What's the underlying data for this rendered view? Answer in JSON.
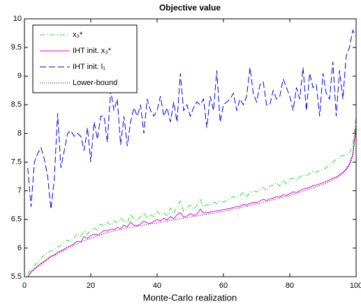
{
  "chart_data": {
    "type": "line",
    "title": "Objective value",
    "xlabel": "Monte-Carlo realization",
    "xlim": [
      0,
      100
    ],
    "xticks": [
      0,
      20,
      40,
      60,
      80,
      100
    ],
    "ylim": [
      5.5,
      10
    ],
    "yticks": [
      5.5,
      6,
      6.5,
      7,
      7.5,
      8,
      8.5,
      9,
      9.5,
      10
    ],
    "legend": "northwest",
    "x": [
      1,
      2,
      3,
      4,
      5,
      6,
      7,
      8,
      9,
      10,
      11,
      12,
      13,
      14,
      15,
      16,
      17,
      18,
      19,
      20,
      21,
      22,
      23,
      24,
      25,
      26,
      27,
      28,
      29,
      30,
      31,
      32,
      33,
      34,
      35,
      36,
      37,
      38,
      39,
      40,
      41,
      42,
      43,
      44,
      45,
      46,
      47,
      48,
      49,
      50,
      51,
      52,
      53,
      54,
      55,
      56,
      57,
      58,
      59,
      60,
      61,
      62,
      63,
      64,
      65,
      66,
      67,
      68,
      69,
      70,
      71,
      72,
      73,
      74,
      75,
      76,
      77,
      78,
      79,
      80,
      81,
      82,
      83,
      84,
      85,
      86,
      87,
      88,
      89,
      90,
      91,
      92,
      93,
      94,
      95,
      96,
      97,
      98,
      99,
      100
    ],
    "series": [
      {
        "name": "x₃*",
        "color": "#22e022",
        "dash": "7,3,1.5,3",
        "values": [
          5.55,
          5.63,
          5.7,
          5.76,
          5.82,
          5.88,
          5.92,
          5.95,
          5.97,
          6.02,
          6.05,
          6.1,
          6.14,
          6.12,
          6.18,
          6.25,
          6.2,
          6.3,
          6.24,
          6.32,
          6.35,
          6.31,
          6.42,
          6.38,
          6.45,
          6.4,
          6.48,
          6.44,
          6.52,
          6.47,
          6.43,
          6.6,
          6.5,
          6.48,
          6.55,
          6.62,
          6.52,
          6.58,
          6.55,
          6.65,
          6.58,
          6.62,
          6.56,
          6.7,
          6.6,
          6.72,
          6.82,
          6.64,
          6.7,
          6.75,
          6.68,
          6.74,
          6.85,
          6.72,
          6.76,
          6.74,
          6.8,
          6.78,
          6.82,
          6.8,
          6.84,
          6.86,
          6.9,
          6.88,
          6.92,
          6.98,
          6.9,
          6.96,
          7.0,
          6.98,
          7.02,
          7.06,
          7.0,
          7.08,
          7.1,
          7.14,
          7.08,
          7.18,
          7.12,
          7.2,
          7.22,
          7.18,
          7.24,
          7.28,
          7.26,
          7.3,
          7.34,
          7.32,
          7.36,
          7.38,
          7.4,
          7.46,
          7.5,
          7.55,
          7.58,
          7.62,
          7.62,
          7.66,
          7.8,
          8.3
        ]
      },
      {
        "name": "IHT init. x₃*",
        "color": "#e600e6",
        "dash": "none",
        "values": [
          5.5,
          5.58,
          5.64,
          5.69,
          5.73,
          5.77,
          5.81,
          5.86,
          5.88,
          5.93,
          5.95,
          5.98,
          6.02,
          6.04,
          6.08,
          6.12,
          6.11,
          6.2,
          6.17,
          6.22,
          6.24,
          6.23,
          6.26,
          6.31,
          6.3,
          6.33,
          6.32,
          6.36,
          6.34,
          6.4,
          6.37,
          6.45,
          6.4,
          6.39,
          6.42,
          6.47,
          6.44,
          6.43,
          6.46,
          6.5,
          6.47,
          6.52,
          6.49,
          6.55,
          6.51,
          6.58,
          6.62,
          6.54,
          6.56,
          6.6,
          6.57,
          6.59,
          6.68,
          6.61,
          6.62,
          6.63,
          6.64,
          6.65,
          6.66,
          6.67,
          6.68,
          6.69,
          6.71,
          6.72,
          6.73,
          6.76,
          6.75,
          6.78,
          6.8,
          6.79,
          6.82,
          6.85,
          6.83,
          6.86,
          6.87,
          6.9,
          6.89,
          6.93,
          6.92,
          6.95,
          6.98,
          6.97,
          7.0,
          7.03,
          7.04,
          7.06,
          7.09,
          7.1,
          7.12,
          7.14,
          7.16,
          7.19,
          7.22,
          7.24,
          7.28,
          7.32,
          7.38,
          7.47,
          7.64,
          8.15
        ]
      },
      {
        "name": "IHT init. l₁",
        "color": "#0000e0",
        "dash": "9,4",
        "values": [
          7.4,
          6.72,
          7.5,
          7.65,
          7.75,
          7.55,
          7.25,
          6.68,
          7.2,
          8.35,
          7.4,
          7.7,
          8.0,
          8.05,
          7.95,
          8.0,
          7.95,
          7.7,
          8.1,
          7.5,
          8.2,
          7.9,
          8.3,
          8.3,
          7.85,
          8.75,
          8.4,
          8.6,
          7.8,
          8.3,
          7.78,
          8.2,
          8.45,
          8.3,
          8.5,
          8.0,
          8.6,
          8.4,
          8.3,
          8.4,
          8.65,
          8.3,
          8.45,
          8.2,
          8.55,
          8.2,
          9.05,
          8.4,
          8.5,
          8.3,
          8.45,
          8.55,
          8.5,
          8.6,
          8.1,
          8.65,
          8.4,
          9.1,
          8.2,
          8.5,
          8.55,
          8.6,
          8.7,
          8.4,
          8.6,
          8.5,
          8.65,
          9.15,
          8.7,
          8.55,
          8.85,
          8.9,
          8.5,
          8.5,
          8.75,
          8.6,
          8.65,
          8.95,
          8.8,
          8.65,
          8.4,
          8.8,
          8.6,
          9.15,
          8.4,
          9.05,
          8.8,
          8.85,
          8.3,
          9.05,
          8.7,
          8.6,
          9.25,
          8.3,
          9.1,
          8.6,
          9.35,
          9.5,
          9.8,
          9.7
        ]
      },
      {
        "name": "Lower-bound",
        "color": "#000000",
        "dash": "1,2",
        "values": [
          5.5,
          5.58,
          5.63,
          5.67,
          5.72,
          5.76,
          5.8,
          5.84,
          5.87,
          5.9,
          5.93,
          5.96,
          5.99,
          6.02,
          6.05,
          6.08,
          6.1,
          6.13,
          6.15,
          6.17,
          6.19,
          6.21,
          6.23,
          6.25,
          6.27,
          6.28,
          6.3,
          6.31,
          6.32,
          6.34,
          6.35,
          6.36,
          6.37,
          6.38,
          6.39,
          6.4,
          6.41,
          6.42,
          6.43,
          6.44,
          6.45,
          6.46,
          6.47,
          6.48,
          6.49,
          6.5,
          6.51,
          6.52,
          6.53,
          6.54,
          6.55,
          6.56,
          6.57,
          6.58,
          6.59,
          6.6,
          6.61,
          6.62,
          6.63,
          6.64,
          6.65,
          6.66,
          6.68,
          6.69,
          6.7,
          6.72,
          6.73,
          6.74,
          6.76,
          6.77,
          6.78,
          6.8,
          6.81,
          6.83,
          6.84,
          6.86,
          6.87,
          6.89,
          6.9,
          6.92,
          6.94,
          6.95,
          6.97,
          6.99,
          7.01,
          7.03,
          7.05,
          7.07,
          7.09,
          7.11,
          7.13,
          7.16,
          7.19,
          7.22,
          7.26,
          7.3,
          7.36,
          7.44,
          7.6,
          8.1
        ]
      }
    ]
  }
}
